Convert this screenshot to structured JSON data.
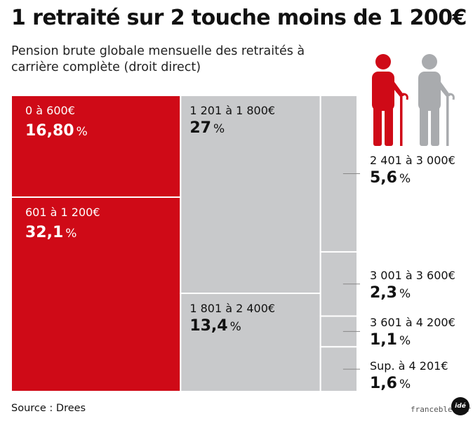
{
  "header": {
    "title": "1 retraité sur 2 touche moins de 1 200€",
    "subtitle": "Pension brute globale mensuelle des retraités à carrière complète (droit direct)"
  },
  "footer": {
    "source": "Source : Drees",
    "credit": "francebleu.fr",
    "logo_text": "idé"
  },
  "colors": {
    "red": "#cf0a17",
    "grey": "#c8c9cb",
    "white_line": "#ffffff",
    "leader": "#888888"
  },
  "icons": [
    "person-with-cane-red-icon",
    "person-with-cane-grey-icon"
  ],
  "chart_data": {
    "type": "treemap",
    "title": "1 retraité sur 2 touche moins de 1 200€",
    "subtitle": "Pension brute globale mensuelle des retraités à carrière complète (droit direct)",
    "unit": "%",
    "categories": [
      "0 à 600€",
      "601 à 1 200€",
      "1 201 à 1 800€",
      "1 801 à 2 400€",
      "2 401 à 3 000€",
      "3 001 à 3 600€",
      "3 601 à 4 200€",
      "Sup. à 4 201€"
    ],
    "values": [
      16.8,
      32.1,
      27,
      13.4,
      5.6,
      2.3,
      1.1,
      1.6
    ],
    "value_labels": [
      "16,80",
      "32,1",
      "27",
      "13,4",
      "5,6",
      "2,3",
      "1,1",
      "1,6"
    ],
    "colors": [
      "#cf0a17",
      "#cf0a17",
      "#c8c9cb",
      "#c8c9cb",
      "#c8c9cb",
      "#c8c9cb",
      "#c8c9cb",
      "#c8c9cb"
    ]
  }
}
